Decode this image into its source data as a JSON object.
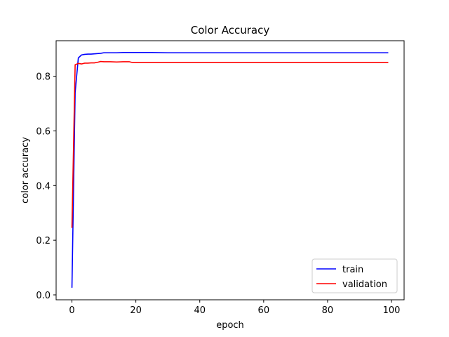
{
  "chart_data": {
    "type": "line",
    "title": "Color Accuracy",
    "xlabel": "epoch",
    "ylabel": "color accuracy",
    "xlim": [
      -4.95,
      103.95
    ],
    "ylim": [
      -0.018,
      0.93
    ],
    "xticks": [
      0,
      20,
      40,
      60,
      80,
      100
    ],
    "yticks": [
      0.0,
      0.2,
      0.4,
      0.6,
      0.8
    ],
    "ytick_labels": [
      "0.0",
      "0.2",
      "0.4",
      "0.6",
      "0.8"
    ],
    "grid": false,
    "legend_position": "bottom-right",
    "series": [
      {
        "name": "train",
        "color": "#0000ff",
        "x": [
          0,
          1,
          2,
          3,
          4,
          5,
          6,
          7,
          8,
          9,
          10,
          12,
          14,
          16,
          18,
          20,
          25,
          30,
          40,
          50,
          60,
          70,
          80,
          90,
          99
        ],
        "y": [
          0.026,
          0.74,
          0.867,
          0.878,
          0.88,
          0.881,
          0.881,
          0.882,
          0.883,
          0.884,
          0.886,
          0.886,
          0.886,
          0.887,
          0.887,
          0.887,
          0.887,
          0.886,
          0.886,
          0.886,
          0.886,
          0.886,
          0.886,
          0.886,
          0.886
        ]
      },
      {
        "name": "validation",
        "color": "#ff0000",
        "x": [
          0,
          1,
          2,
          3,
          4,
          5,
          6,
          7,
          8,
          9,
          10,
          12,
          14,
          16,
          18,
          19,
          20,
          25,
          30,
          40,
          50,
          60,
          70,
          80,
          90,
          99
        ],
        "y": [
          0.245,
          0.842,
          0.847,
          0.845,
          0.848,
          0.848,
          0.849,
          0.849,
          0.851,
          0.854,
          0.853,
          0.853,
          0.852,
          0.853,
          0.853,
          0.85,
          0.85,
          0.85,
          0.85,
          0.85,
          0.85,
          0.85,
          0.85,
          0.85,
          0.85,
          0.85
        ]
      }
    ]
  }
}
